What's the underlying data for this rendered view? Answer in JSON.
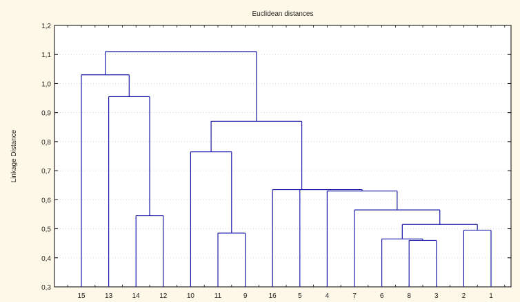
{
  "chart_data": {
    "type": "dendrogram",
    "title": "Euclidean distances",
    "xlabel": "",
    "ylabel": "Linkage Distance",
    "ylim": [
      0.3,
      1.2
    ],
    "yticks": [
      "0,3",
      "0,4",
      "0,5",
      "0,6",
      "0,7",
      "0,8",
      "0,9",
      "1,0",
      "1,1",
      "1,2"
    ],
    "leaf_order": [
      "15",
      "13",
      "14",
      "12",
      "10",
      "11",
      "9",
      "16",
      "5",
      "4",
      "7",
      "6",
      "8",
      "3",
      "2",
      "1"
    ],
    "merges": [
      {
        "id": "A",
        "left": "8",
        "right": "3",
        "height": 0.46
      },
      {
        "id": "B",
        "left": "6",
        "right": "A",
        "height": 0.465
      },
      {
        "id": "C",
        "left": "2",
        "right": "1",
        "height": 0.495
      },
      {
        "id": "D",
        "left": "B",
        "right": "C",
        "height": 0.515
      },
      {
        "id": "E",
        "left": "7",
        "right": "D",
        "height": 0.565
      },
      {
        "id": "F",
        "left": "4",
        "right": "E",
        "height": 0.63
      },
      {
        "id": "G",
        "left": "5",
        "right": "F",
        "height": 0.635
      },
      {
        "id": "H",
        "left": "16",
        "right": "G",
        "height": 0.635
      },
      {
        "id": "I",
        "left": "11",
        "right": "9",
        "height": 0.485
      },
      {
        "id": "J",
        "left": "10",
        "right": "I",
        "height": 0.765
      },
      {
        "id": "K",
        "left": "J",
        "right": "H",
        "height": 0.87
      },
      {
        "id": "L",
        "left": "14",
        "right": "12",
        "height": 0.545
      },
      {
        "id": "M",
        "left": "13",
        "right": "L",
        "height": 0.955
      },
      {
        "id": "N",
        "left": "15",
        "right": "M",
        "height": 1.03
      },
      {
        "id": "O",
        "left": "N",
        "right": "K",
        "height": 1.11
      }
    ],
    "grid": true,
    "colors": {
      "background": "#fdf8e8",
      "plot_background": "#ffffff",
      "line": "#1a1aa8",
      "axis": "#000000",
      "grid": "#c0c0c0"
    }
  }
}
